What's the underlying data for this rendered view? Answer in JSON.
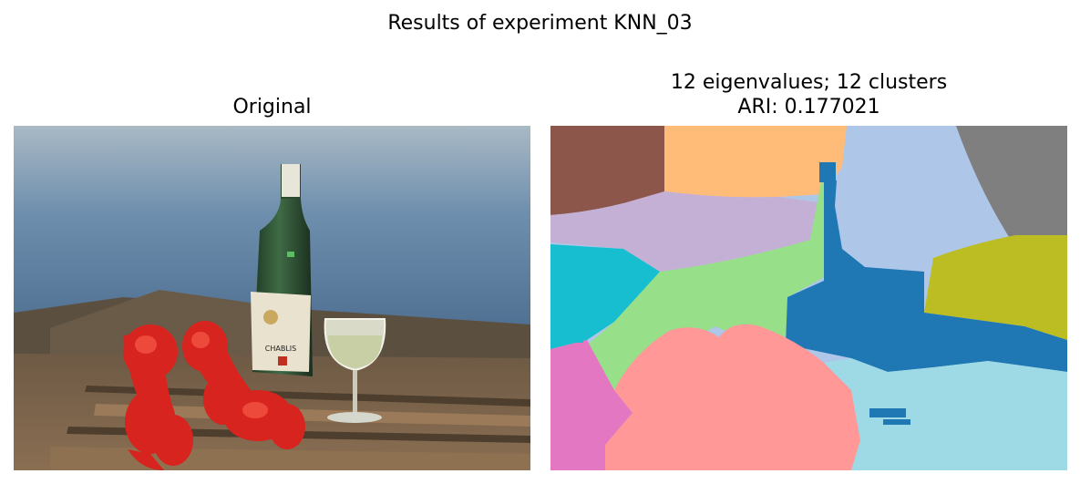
{
  "figure": {
    "suptitle": "Results of experiment KNN_03"
  },
  "left_panel": {
    "title": "Original",
    "bottle_label": "CHABLIS"
  },
  "right_panel": {
    "title_line1": "12 eigenvalues; 12 clusters",
    "title_line2": "ARI: 0.177021",
    "palette": {
      "brown": "#8c564b",
      "orange": "#ffbb78",
      "light_blue": "#aec7e8",
      "gray": "#7f7f7f",
      "lavender": "#c5b0d5",
      "cyan": "#17becf",
      "light_green": "#98df8a",
      "blue": "#1f77b4",
      "olive": "#bcbd22",
      "pink": "#e377c2",
      "salmon": "#ff9896",
      "pale_cyan": "#9edae5"
    }
  }
}
